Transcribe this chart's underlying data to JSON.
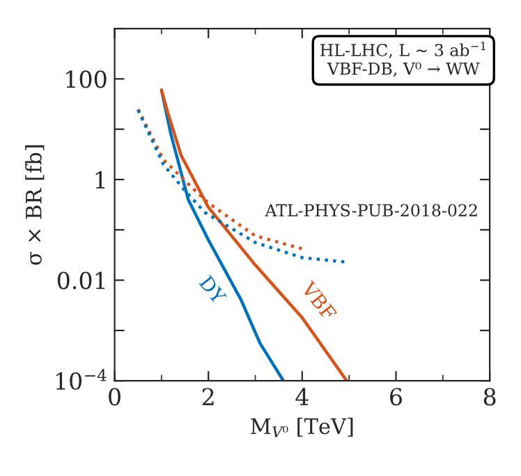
{
  "chart_data": {
    "type": "line",
    "xlabel": "M$_{V⁰}$ [TeV]",
    "ylabel": "σ × BR [fb]",
    "log": "y",
    "xlim": [
      0,
      8
    ],
    "xticks": [
      0,
      2,
      4,
      6,
      8
    ],
    "ylim": [
      0.0001,
      1000
    ],
    "yticks": [
      {
        "value": 0.0001,
        "label": "10$^{−4}$"
      },
      {
        "value": 0.001,
        "label": null
      },
      {
        "value": 0.01,
        "label": "0.01"
      },
      {
        "value": 0.1,
        "label": null
      },
      {
        "value": 1,
        "label": "1"
      },
      {
        "value": 10,
        "label": null
      },
      {
        "value": 100,
        "label": "100"
      },
      {
        "value": 1000,
        "label": null
      }
    ],
    "grid": false,
    "legend": false,
    "series": [
      {
        "name": "DY",
        "color": "#0072bd",
        "line_style": "solid",
        "x": [
          1.0,
          1.2,
          1.57,
          2.0,
          2.7,
          3.1,
          3.6
        ],
        "values": [
          60,
          8,
          0.4,
          0.063,
          0.004,
          0.00056,
          0.0001
        ]
      },
      {
        "name": "VBF",
        "color": "#d95319",
        "line_style": "solid",
        "x": [
          1.0,
          1.13,
          1.42,
          2.0,
          3.0,
          4.0,
          4.95
        ],
        "values": [
          60,
          22,
          3,
          0.28,
          0.02,
          0.0018,
          0.0001
        ]
      },
      {
        "color": "#d95319",
        "line_style": "dotted",
        "x": [
          0.5,
          1.04,
          1.72,
          2.0,
          3.0,
          4.0
        ],
        "values": [
          25,
          2.5,
          0.6,
          0.34,
          0.076,
          0.042
        ]
      },
      {
        "color": "#0072bd",
        "line_style": "dotted",
        "x": [
          0.5,
          1.04,
          1.5,
          1.93,
          3.0,
          4.0,
          4.92
        ],
        "values": [
          24,
          2,
          0.6,
          0.22,
          0.056,
          0.028,
          0.023
        ]
      }
    ],
    "annotations": [
      "ATL-PHYS-PUB-2018-022",
      "HL-LHC, L ~ 3 ab$^{−1}$\nVBF-DB, V⁰ → WW"
    ]
  }
}
